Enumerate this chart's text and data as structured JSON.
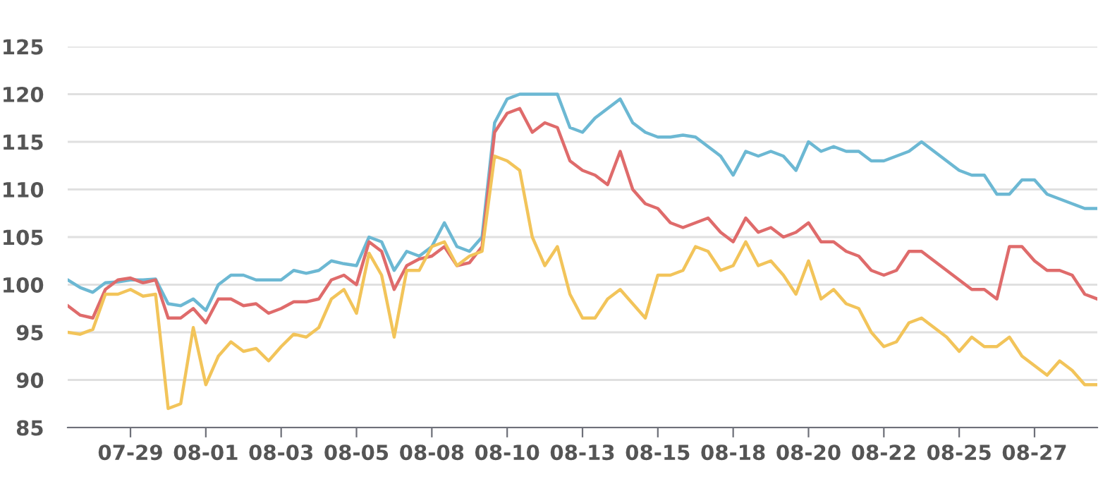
{
  "chart_data": {
    "type": "line",
    "categories": [
      null,
      null,
      null,
      null,
      null,
      "07-29",
      null,
      null,
      null,
      null,
      null,
      "08-01",
      null,
      null,
      null,
      null,
      null,
      "08-03",
      null,
      null,
      null,
      null,
      null,
      "08-05",
      null,
      null,
      null,
      null,
      null,
      "08-08",
      null,
      null,
      null,
      null,
      null,
      "08-10",
      null,
      null,
      null,
      null,
      null,
      "08-13",
      null,
      null,
      null,
      null,
      null,
      "08-15",
      null,
      null,
      null,
      null,
      null,
      "08-18",
      null,
      null,
      null,
      null,
      null,
      "08-20",
      null,
      null,
      null,
      null,
      null,
      "08-22",
      null,
      null,
      null,
      null,
      null,
      "08-25",
      null,
      null,
      null,
      null,
      null,
      "08-27",
      null,
      null,
      null,
      null,
      null
    ],
    "series": [
      {
        "color": "#6cb8d3",
        "values": [
          100.5,
          99.7,
          99.2,
          100.2,
          100.3,
          100.5,
          100.5,
          100.6,
          98,
          97.8,
          98.5,
          97.3,
          100,
          101,
          101,
          100.5,
          100.5,
          100.5,
          101.5,
          101.2,
          101.5,
          102.5,
          102.2,
          102,
          105,
          104.5,
          101.5,
          103.5,
          103,
          104,
          106.5,
          104,
          103.5,
          105,
          117,
          119.5,
          120,
          120,
          120,
          120,
          116.5,
          116,
          117.5,
          118.5,
          119.5,
          117,
          116,
          115.5,
          115.5,
          115.7,
          115.5,
          114.5,
          113.5,
          111.5,
          114,
          113.5,
          114,
          113.5,
          112,
          115,
          114,
          114.5,
          114,
          114,
          113,
          113,
          113.5,
          114,
          115,
          114,
          113,
          112,
          111.5,
          111.5,
          109.5,
          109.5,
          111,
          111,
          109.5,
          109,
          108.5,
          108,
          108
        ]
      },
      {
        "color": "#df6b6b",
        "values": [
          97.8,
          96.8,
          96.5,
          99.5,
          100.5,
          100.7,
          100.2,
          100.5,
          96.5,
          96.5,
          97.5,
          96,
          98.5,
          98.5,
          97.8,
          98,
          97,
          97.5,
          98.2,
          98.2,
          98.5,
          100.5,
          101,
          100,
          104.5,
          103.5,
          99.5,
          102,
          102.7,
          103,
          104,
          102,
          102.3,
          104,
          116,
          118,
          118.5,
          116,
          117,
          116.5,
          113,
          112,
          111.5,
          110.5,
          114,
          110,
          108.5,
          108,
          106.5,
          106,
          106.5,
          107,
          105.5,
          104.5,
          107,
          105.5,
          106,
          105,
          105.5,
          106.5,
          104.5,
          104.5,
          103.5,
          103,
          101.5,
          101,
          101.5,
          103.5,
          103.5,
          102.5,
          101.5,
          100.5,
          99.5,
          99.5,
          98.5,
          104,
          104,
          102.5,
          101.5,
          101.5,
          101,
          99,
          98.5
        ]
      },
      {
        "color": "#f2c45a",
        "values": [
          95,
          94.8,
          95.3,
          99,
          99,
          99.5,
          98.8,
          99,
          87,
          87.5,
          95.5,
          89.5,
          92.5,
          94,
          93,
          93.3,
          92,
          93.5,
          94.8,
          94.5,
          95.5,
          98.5,
          99.5,
          97,
          103.3,
          101,
          94.5,
          101.5,
          101.5,
          104,
          104.5,
          102,
          103,
          103.5,
          113.5,
          113,
          112,
          105,
          102,
          104,
          99,
          96.5,
          96.5,
          98.5,
          99.5,
          98,
          96.5,
          101,
          101,
          101.5,
          104,
          103.5,
          101.5,
          102,
          104.5,
          102,
          102.5,
          101,
          99,
          102.5,
          98.5,
          99.5,
          98,
          97.5,
          95,
          93.5,
          94,
          96,
          96.5,
          95.5,
          94.5,
          93,
          94.5,
          93.5,
          93.5,
          94.5,
          92.5,
          91.5,
          90.5,
          92,
          91,
          89.5,
          89.5
        ]
      }
    ],
    "ylim": [
      85,
      125
    ],
    "yticks": [
      85,
      90,
      95,
      100,
      105,
      110,
      115,
      120,
      125
    ],
    "grid": "y",
    "legend": false,
    "marker": "none",
    "line_style": "solid"
  }
}
